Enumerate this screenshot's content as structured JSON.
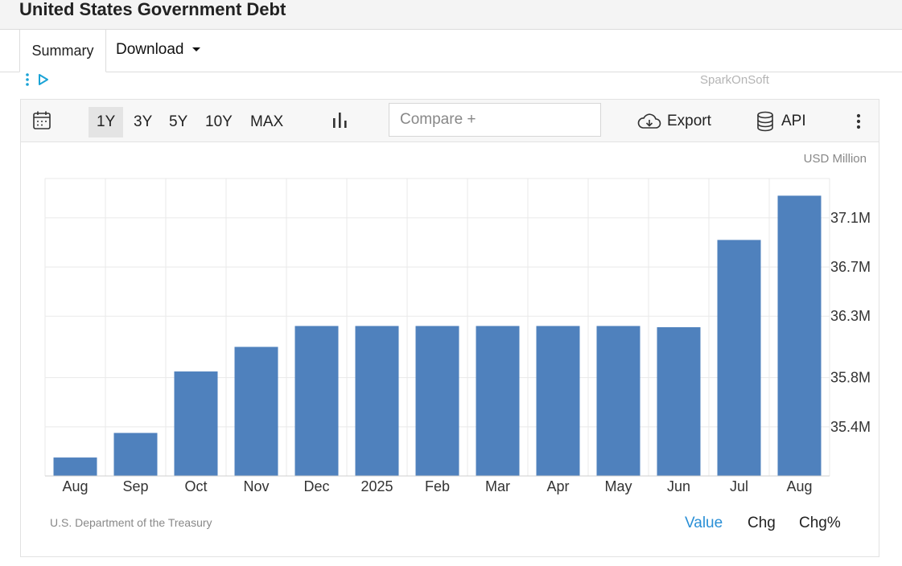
{
  "header": {
    "title": "United States Government Debt"
  },
  "tabs": {
    "summary": "Summary",
    "download": "Download"
  },
  "ad": {
    "text": "SparkOnSoft"
  },
  "toolbar": {
    "ranges": [
      "1Y",
      "3Y",
      "5Y",
      "10Y",
      "MAX"
    ],
    "active_range": "1Y",
    "compare_placeholder": "Compare +",
    "export_label": "Export",
    "api_label": "API"
  },
  "footer": {
    "source": "U.S. Department of the Treasury",
    "value_tab": "Value",
    "chg_tab": "Chg",
    "chgpct_tab": "Chg%"
  },
  "colors": {
    "bar": "#4f81bd",
    "accent": "#2a8fd6",
    "grid": "#e9e9e9"
  },
  "chart_data": {
    "type": "bar",
    "unit_label": "USD Million",
    "categories": [
      "Aug",
      "Sep",
      "Oct",
      "Nov",
      "Dec",
      "2025",
      "Feb",
      "Mar",
      "Apr",
      "May",
      "Jun",
      "Jul",
      "Aug"
    ],
    "values": [
      35150000,
      35350000,
      35850000,
      36050000,
      36220000,
      36220000,
      36220000,
      36220000,
      36220000,
      36220000,
      36210000,
      36920000,
      37280000
    ],
    "y_ticks": [
      35400000,
      35800000,
      36300000,
      36700000,
      37100000
    ],
    "y_tick_labels": [
      "35.4M",
      "35.8M",
      "36.3M",
      "36.7M",
      "37.1M"
    ],
    "ylim": [
      35000000,
      37420000
    ],
    "grid": true,
    "legend": "none",
    "y_axis_position": "right"
  }
}
